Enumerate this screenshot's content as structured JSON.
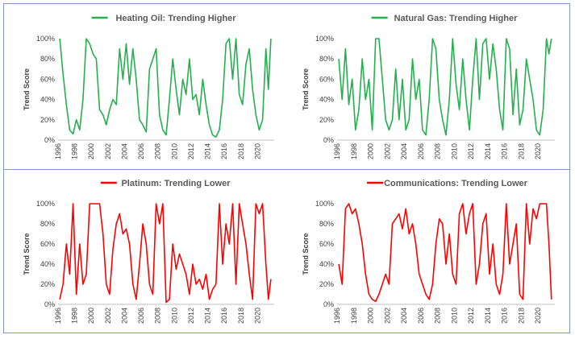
{
  "chart_data": [
    {
      "type": "line",
      "title": "Heating Oil: Trending Higher",
      "ylabel": "Trend Score",
      "xlim": [
        1996,
        2022
      ],
      "ylim": [
        0,
        100
      ],
      "x_ticks": [
        "1996",
        "1998",
        "2000",
        "2002",
        "2004",
        "2006",
        "2008",
        "2010",
        "2012",
        "2014",
        "2016",
        "2018",
        "2020"
      ],
      "y_ticks": [
        "0%",
        "20%",
        "40%",
        "60%",
        "80%",
        "100%"
      ],
      "color": "#22b14c",
      "series": [
        {
          "x": [
            1996.2,
            1996.6,
            1997.0,
            1997.4,
            1997.8,
            1998.2,
            1998.6,
            1999.0,
            1999.4,
            1999.8,
            2000.2,
            2000.6,
            2001.0,
            2001.4,
            2001.8,
            2002.2,
            2002.6,
            2003.0,
            2003.4,
            2003.8,
            2004.2,
            2004.6,
            2005.0,
            2005.4,
            2005.8,
            2006.2,
            2006.6,
            2007.0,
            2007.4,
            2007.8,
            2008.2,
            2008.6,
            2009.0,
            2009.4,
            2009.8,
            2010.2,
            2010.6,
            2011.0,
            2011.4,
            2011.8,
            2012.2,
            2012.6,
            2013.0,
            2013.4,
            2013.8,
            2014.2,
            2014.6,
            2015.0,
            2015.4,
            2015.8,
            2016.2,
            2016.6,
            2017.0,
            2017.4,
            2017.8,
            2018.2,
            2018.6,
            2019.0,
            2019.4,
            2019.8,
            2020.2,
            2020.6,
            2021.0,
            2021.3,
            2021.6
          ],
          "y": [
            100,
            65,
            35,
            10,
            6,
            20,
            10,
            40,
            100,
            95,
            85,
            80,
            30,
            25,
            15,
            30,
            40,
            35,
            90,
            60,
            95,
            55,
            90,
            60,
            20,
            15,
            8,
            70,
            80,
            90,
            25,
            10,
            5,
            40,
            80,
            50,
            25,
            60,
            45,
            80,
            40,
            45,
            25,
            60,
            35,
            15,
            5,
            3,
            10,
            40,
            95,
            100,
            60,
            100,
            45,
            35,
            75,
            90,
            50,
            25,
            10,
            20,
            90,
            50,
            100
          ]
        }
      ]
    },
    {
      "type": "line",
      "title": "Natural Gas: Trending Higher",
      "ylabel": "Trend Score",
      "xlim": [
        1996,
        2022
      ],
      "ylim": [
        0,
        100
      ],
      "x_ticks": [
        "1996",
        "1998",
        "2000",
        "2002",
        "2004",
        "2006",
        "2008",
        "2010",
        "2012",
        "2014",
        "2016",
        "2018",
        "2020"
      ],
      "y_ticks": [
        "0%",
        "20%",
        "40%",
        "60%",
        "80%",
        "100%"
      ],
      "color": "#22b14c",
      "series": [
        {
          "x": [
            1996.2,
            1996.6,
            1997.0,
            1997.4,
            1997.8,
            1998.2,
            1998.6,
            1999.0,
            1999.4,
            1999.8,
            2000.2,
            2000.6,
            2001.0,
            2001.4,
            2001.8,
            2002.2,
            2002.6,
            2003.0,
            2003.4,
            2003.8,
            2004.2,
            2004.6,
            2005.0,
            2005.4,
            2005.8,
            2006.2,
            2006.6,
            2007.0,
            2007.4,
            2007.8,
            2008.2,
            2008.6,
            2009.0,
            2009.4,
            2009.8,
            2010.2,
            2010.6,
            2011.0,
            2011.4,
            2011.8,
            2012.2,
            2012.6,
            2013.0,
            2013.4,
            2013.8,
            2014.2,
            2014.6,
            2015.0,
            2015.4,
            2015.8,
            2016.2,
            2016.6,
            2017.0,
            2017.4,
            2017.8,
            2018.2,
            2018.6,
            2019.0,
            2019.4,
            2019.8,
            2020.2,
            2020.6,
            2021.0,
            2021.3,
            2021.6
          ],
          "y": [
            80,
            40,
            90,
            35,
            60,
            10,
            30,
            80,
            40,
            60,
            10,
            100,
            100,
            60,
            20,
            10,
            20,
            70,
            20,
            60,
            10,
            20,
            80,
            40,
            60,
            10,
            5,
            40,
            100,
            90,
            40,
            20,
            5,
            40,
            100,
            55,
            30,
            80,
            40,
            10,
            60,
            100,
            40,
            95,
            100,
            60,
            95,
            70,
            30,
            10,
            100,
            90,
            25,
            70,
            15,
            30,
            80,
            60,
            40,
            10,
            5,
            30,
            100,
            85,
            100
          ]
        }
      ]
    },
    {
      "type": "line",
      "title": "Platinum: Trending Lower",
      "ylabel": "Trend Score",
      "xlim": [
        1996,
        2022
      ],
      "ylim": [
        0,
        100
      ],
      "x_ticks": [
        "1996",
        "1998",
        "2000",
        "2002",
        "2004",
        "2006",
        "2008",
        "2010",
        "2012",
        "2014",
        "2016",
        "2018",
        "2020"
      ],
      "y_ticks": [
        "0%",
        "20%",
        "40%",
        "60%",
        "80%",
        "100%"
      ],
      "color": "#ff0000",
      "series": [
        {
          "x": [
            1996.2,
            1996.6,
            1997.0,
            1997.4,
            1997.8,
            1998.2,
            1998.6,
            1999.0,
            1999.4,
            1999.8,
            2000.2,
            2000.6,
            2001.0,
            2001.4,
            2001.8,
            2002.2,
            2002.6,
            2003.0,
            2003.4,
            2003.8,
            2004.2,
            2004.6,
            2005.0,
            2005.4,
            2005.8,
            2006.2,
            2006.6,
            2007.0,
            2007.4,
            2007.8,
            2008.2,
            2008.6,
            2009.0,
            2009.4,
            2009.8,
            2010.2,
            2010.6,
            2011.0,
            2011.4,
            2011.8,
            2012.2,
            2012.6,
            2013.0,
            2013.4,
            2013.8,
            2014.2,
            2014.6,
            2015.0,
            2015.4,
            2015.8,
            2016.2,
            2016.6,
            2017.0,
            2017.4,
            2017.8,
            2018.2,
            2018.6,
            2019.0,
            2019.4,
            2019.8,
            2020.2,
            2020.6,
            2021.0,
            2021.3,
            2021.6
          ],
          "y": [
            5,
            20,
            60,
            30,
            100,
            10,
            60,
            20,
            30,
            100,
            100,
            100,
            100,
            70,
            20,
            10,
            55,
            80,
            90,
            70,
            75,
            60,
            20,
            5,
            40,
            80,
            60,
            20,
            10,
            100,
            80,
            100,
            2,
            5,
            60,
            35,
            50,
            40,
            30,
            10,
            40,
            20,
            25,
            15,
            30,
            5,
            15,
            20,
            100,
            40,
            80,
            60,
            100,
            20,
            100,
            80,
            60,
            30,
            5,
            100,
            90,
            100,
            40,
            5,
            25
          ]
        }
      ]
    },
    {
      "type": "line",
      "title": "Communications: Trending Lower",
      "ylabel": "Trend Score",
      "xlim": [
        1996,
        2022
      ],
      "ylim": [
        0,
        100
      ],
      "x_ticks": [
        "1996",
        "1998",
        "2000",
        "2002",
        "2004",
        "2006",
        "2008",
        "2010",
        "2012",
        "2014",
        "2016",
        "2018",
        "2020"
      ],
      "y_ticks": [
        "0%",
        "20%",
        "40%",
        "60%",
        "80%",
        "100%"
      ],
      "color": "#ff0000",
      "series": [
        {
          "x": [
            1996.2,
            1996.6,
            1997.0,
            1997.4,
            1997.8,
            1998.2,
            1998.6,
            1999.0,
            1999.4,
            1999.8,
            2000.2,
            2000.6,
            2001.0,
            2001.4,
            2001.8,
            2002.2,
            2002.6,
            2003.0,
            2003.4,
            2003.8,
            2004.2,
            2004.6,
            2005.0,
            2005.4,
            2005.8,
            2006.2,
            2006.6,
            2007.0,
            2007.4,
            2007.8,
            2008.2,
            2008.6,
            2009.0,
            2009.4,
            2009.8,
            2010.2,
            2010.6,
            2011.0,
            2011.4,
            2011.8,
            2012.2,
            2012.6,
            2013.0,
            2013.4,
            2013.8,
            2014.2,
            2014.6,
            2015.0,
            2015.4,
            2015.8,
            2016.2,
            2016.6,
            2017.0,
            2017.4,
            2017.8,
            2018.2,
            2018.6,
            2019.0,
            2019.4,
            2019.8,
            2020.2,
            2020.6,
            2021.0,
            2021.3,
            2021.6
          ],
          "y": [
            40,
            20,
            95,
            100,
            90,
            95,
            80,
            60,
            30,
            10,
            5,
            3,
            10,
            20,
            30,
            20,
            80,
            85,
            90,
            75,
            95,
            70,
            80,
            60,
            30,
            20,
            10,
            5,
            20,
            60,
            85,
            80,
            40,
            70,
            30,
            20,
            90,
            100,
            70,
            90,
            100,
            20,
            40,
            80,
            90,
            30,
            60,
            20,
            10,
            30,
            100,
            40,
            60,
            80,
            10,
            5,
            100,
            60,
            95,
            85,
            100,
            100,
            100,
            60,
            5
          ]
        }
      ]
    }
  ]
}
